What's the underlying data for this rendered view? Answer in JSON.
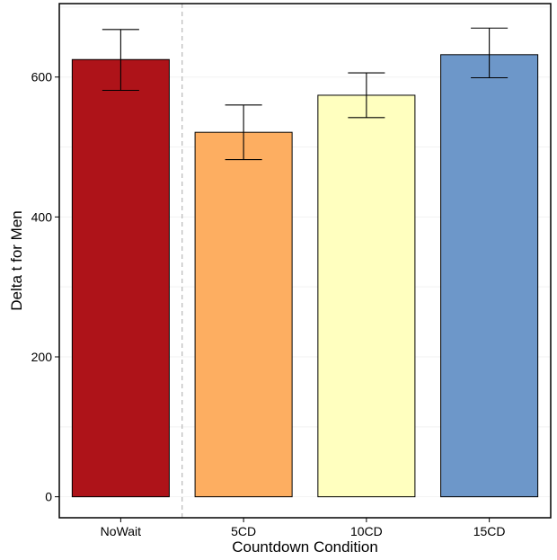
{
  "chart_data": {
    "type": "bar",
    "title": "",
    "xlabel": "Countdown Condition",
    "ylabel": "Delta t for Men",
    "categories": [
      "NoWait",
      "5CD",
      "10CD",
      "15CD"
    ],
    "values": [
      625,
      521,
      574,
      632
    ],
    "error_low": [
      581,
      482,
      542,
      599
    ],
    "error_high": [
      668,
      560,
      606,
      670
    ],
    "colors": [
      "#ae1319",
      "#fdae61",
      "#ffffbf",
      "#6d97c9"
    ],
    "ylim": [
      -30,
      705
    ],
    "yticks": [
      0,
      200,
      400,
      600
    ],
    "grid": "faint-horizontal",
    "reference_line": {
      "between": [
        "NoWait",
        "5CD"
      ],
      "style": "dashed",
      "color": "#b8b8b8"
    },
    "legend": "none"
  }
}
